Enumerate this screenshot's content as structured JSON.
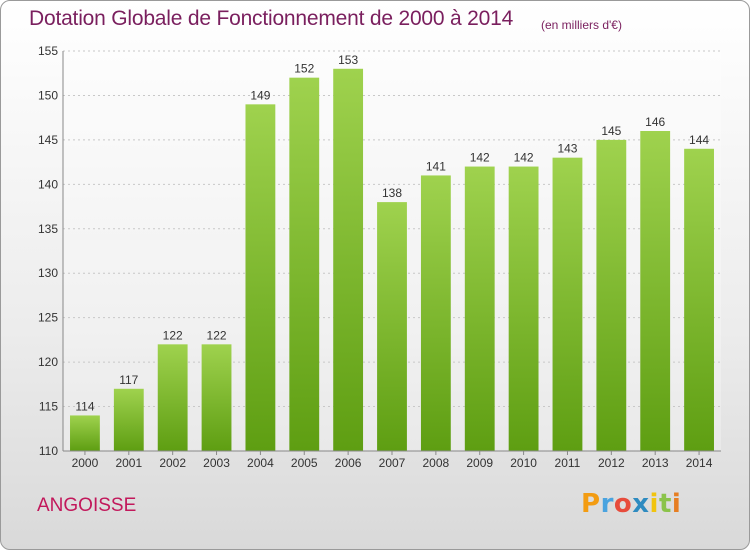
{
  "header": {
    "title": "Dotation Globale de Fonctionnement de 2000 à 2014",
    "subtitle": "(en milliers d'€)"
  },
  "footer": {
    "commune": "ANGOISSE",
    "logo_letters": [
      "P",
      "r",
      "o",
      "x",
      "i",
      "t",
      "i"
    ],
    "logo_colors": [
      "#f39c12",
      "#4aa3df",
      "#e74c3c",
      "#2e8bc0",
      "#f1c40f",
      "#8bc34a",
      "#e67e22"
    ]
  },
  "chart_data": {
    "type": "bar",
    "title": "Dotation Globale de Fonctionnement de 2000 à 2014",
    "categories": [
      "2000",
      "2001",
      "2002",
      "2003",
      "2004",
      "2005",
      "2006",
      "2007",
      "2008",
      "2009",
      "2010",
      "2011",
      "2012",
      "2013",
      "2014"
    ],
    "values": [
      114,
      117,
      122,
      122,
      149,
      152,
      153,
      138,
      141,
      142,
      142,
      143,
      145,
      146,
      144
    ],
    "ylim": [
      110,
      155
    ],
    "yticks": [
      110,
      115,
      120,
      125,
      130,
      135,
      140,
      145,
      150,
      155
    ],
    "grid": true,
    "bar_color": "#8cc63f"
  }
}
